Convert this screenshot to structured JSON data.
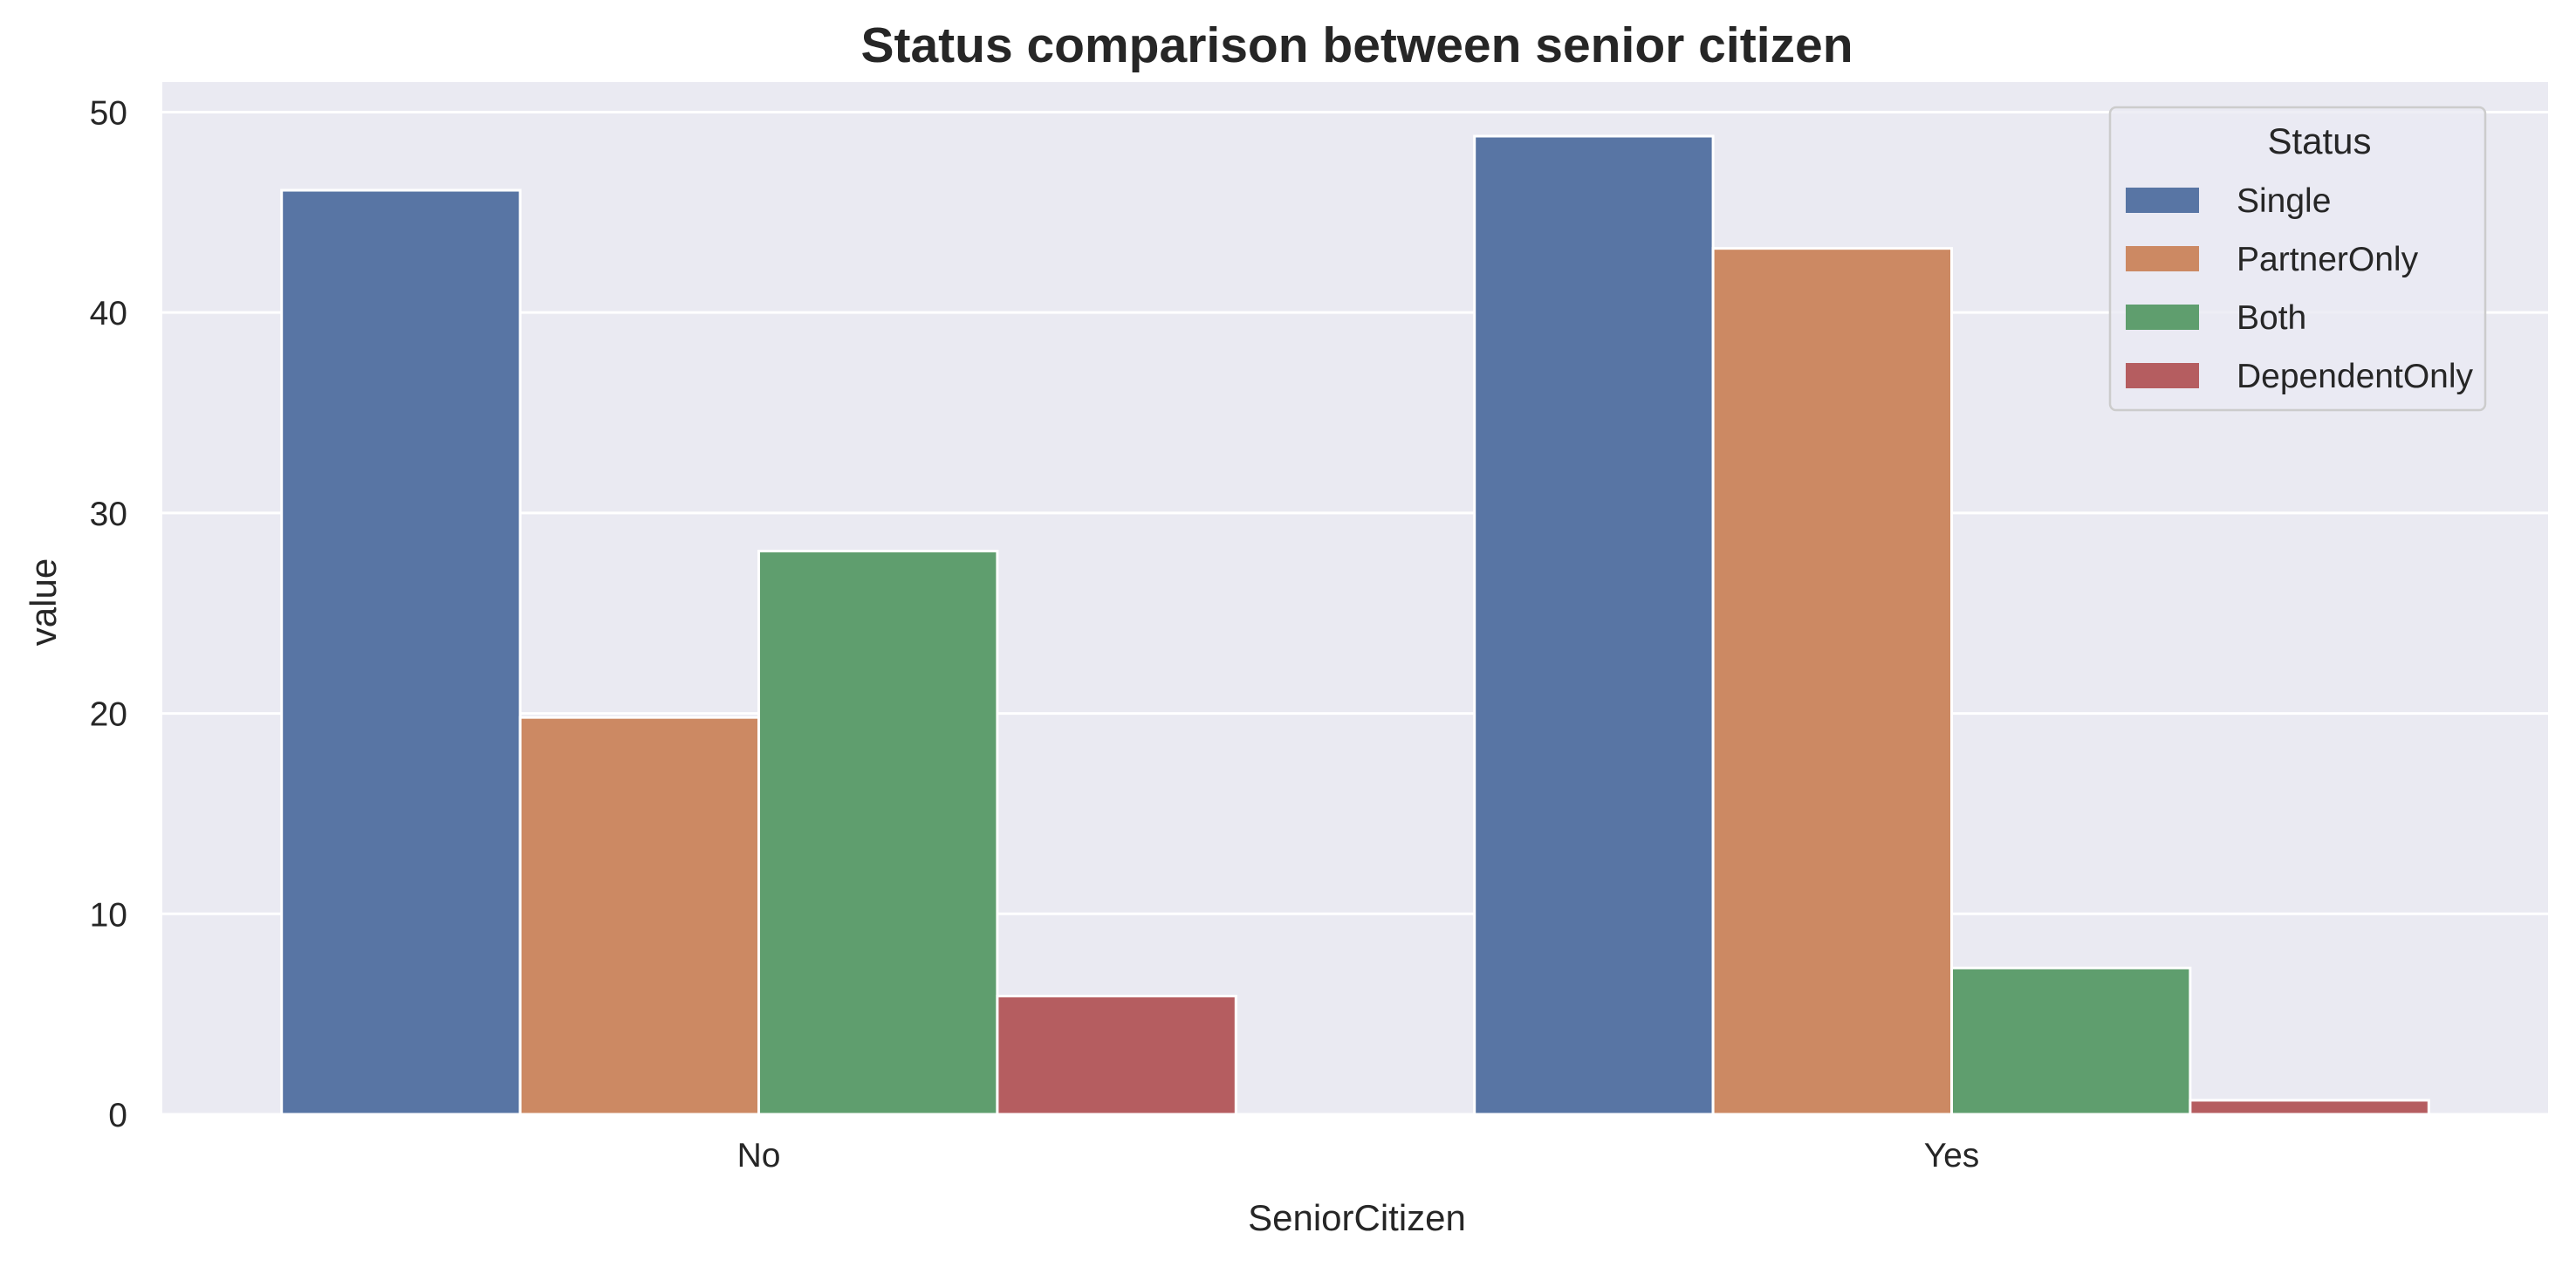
{
  "chart_data": {
    "type": "bar",
    "title": "Status comparison between senior citizen",
    "xlabel": "SeniorCitizen",
    "ylabel": "value",
    "categories": [
      "No",
      "Yes"
    ],
    "ylim": [
      0,
      51.5
    ],
    "yticks": [
      0,
      10,
      20,
      30,
      40,
      50
    ],
    "grid": true,
    "legend_title": "Status",
    "legend_position": "top-right",
    "series": [
      {
        "name": "Single",
        "values": [
          46.1,
          48.8
        ],
        "color": "#5875a4"
      },
      {
        "name": "PartnerOnly",
        "values": [
          19.8,
          43.2
        ],
        "color": "#cc8963"
      },
      {
        "name": "Both",
        "values": [
          28.1,
          7.3
        ],
        "color": "#5f9e6e"
      },
      {
        "name": "DependentOnly",
        "values": [
          5.9,
          0.7
        ],
        "color": "#b55d60"
      }
    ],
    "background_color": "#eaeaf2"
  }
}
